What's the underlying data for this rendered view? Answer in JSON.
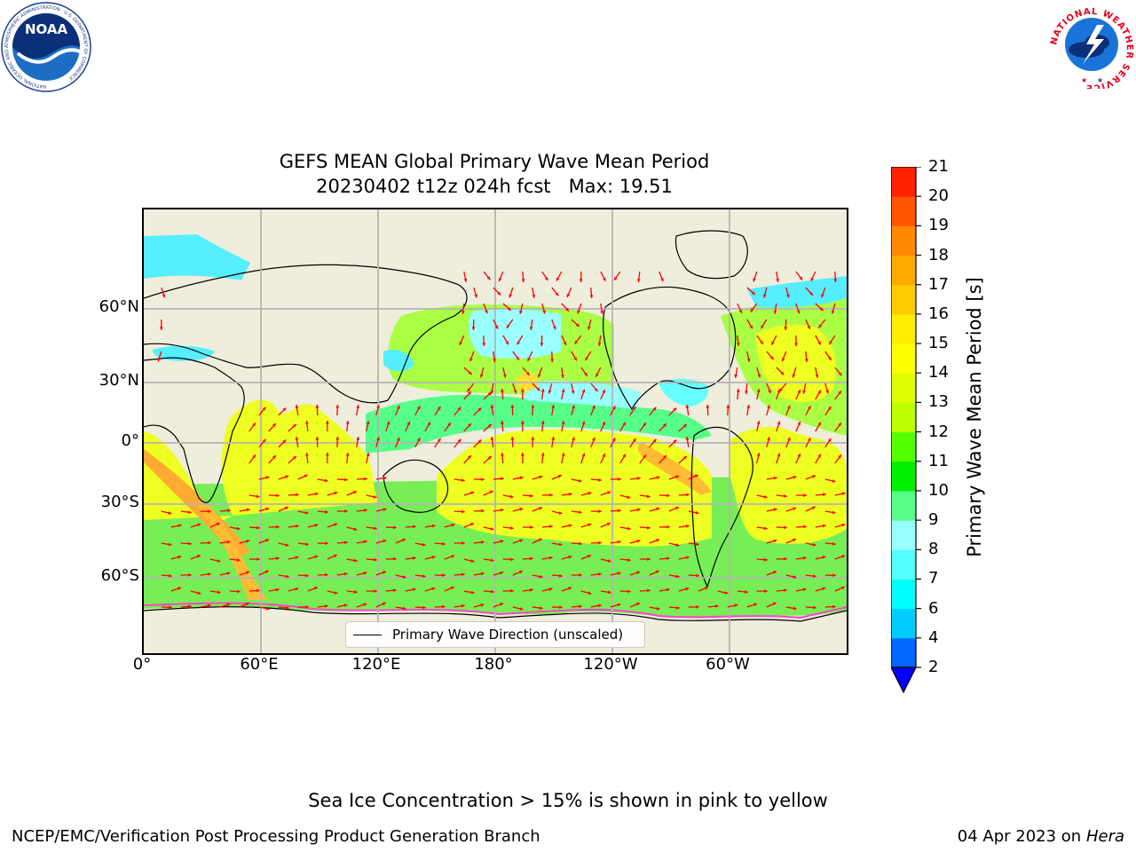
{
  "title": {
    "line1": "GEFS MEAN Global Primary Wave Mean Period",
    "line2": "20230402 t12z 024h fcst   Max: 19.51"
  },
  "map": {
    "projection": "PlateCarree",
    "lat_ticks": [
      "60°N",
      "30°N",
      "0°",
      "30°S",
      "60°S"
    ],
    "lon_ticks": [
      "0°",
      "60°E",
      "120°E",
      "180°",
      "120°W",
      "60°W"
    ],
    "legend_label": "Primary Wave Direction (unscaled)",
    "land_color": "#efeddc",
    "arrow_color": "#ff0000",
    "grid_color": "#b4b4b4"
  },
  "colorbar": {
    "label": "Primary Wave Mean Period [s]",
    "ticks": [
      "2",
      "4",
      "6",
      "7",
      "8",
      "9",
      "10",
      "11",
      "12",
      "13",
      "14",
      "15",
      "16",
      "17",
      "18",
      "19",
      "20",
      "21"
    ],
    "colors": [
      "#0066ff",
      "#00ccff",
      "#00ffff",
      "#55ffff",
      "#99ffff",
      "#55ff88",
      "#00ee00",
      "#55ff00",
      "#bbff00",
      "#ddff00",
      "#ffff00",
      "#ffee00",
      "#ffcc00",
      "#ffaa00",
      "#ff8800",
      "#ff5500",
      "#ff2200"
    ],
    "under_color": "#0000ff"
  },
  "footnote": "Sea Ice Concentration > 15% is shown in pink to yellow",
  "credit_left": "NCEP/EMC/Verification Post Processing Product Generation Branch",
  "credit_date": "04 Apr 2023 on ",
  "credit_machine": "Hera",
  "logos": {
    "noaa_text": "NOAA",
    "noaa_ring": "NATIONAL OCEANIC AND ATMOSPHERIC ADMINISTRATION · U.S. DEPARTMENT OF COMMERCE",
    "nws_ring": "NATIONAL WEATHER SERVICE"
  }
}
